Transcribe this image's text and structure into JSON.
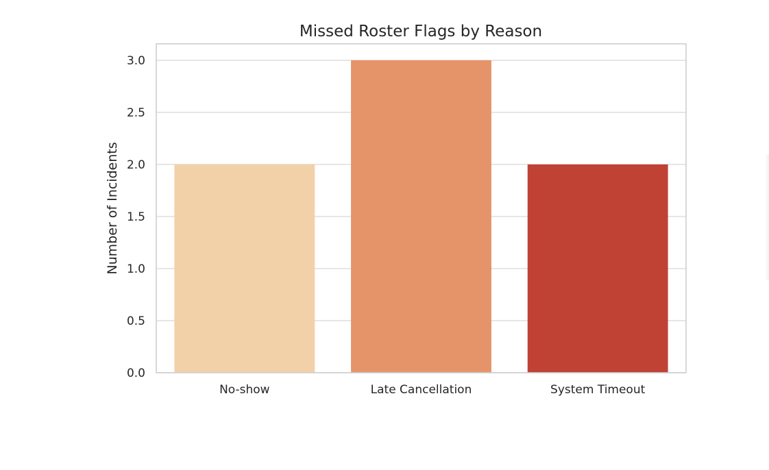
{
  "chart_data": {
    "type": "bar",
    "title": "Missed Roster Flags by Reason",
    "xlabel": "",
    "ylabel": "Number of Incidents",
    "categories": [
      "No-show",
      "Late Cancellation",
      "System Timeout"
    ],
    "values": [
      2,
      3,
      2
    ],
    "colors": [
      "#f2d1a9",
      "#e5946a",
      "#bf4234"
    ],
    "ylim": [
      0,
      3.0
    ],
    "yticks": [
      "0.0",
      "0.5",
      "1.0",
      "1.5",
      "2.0",
      "2.5",
      "3.0"
    ],
    "grid": true,
    "grid_axis": "y",
    "legend": "none"
  }
}
